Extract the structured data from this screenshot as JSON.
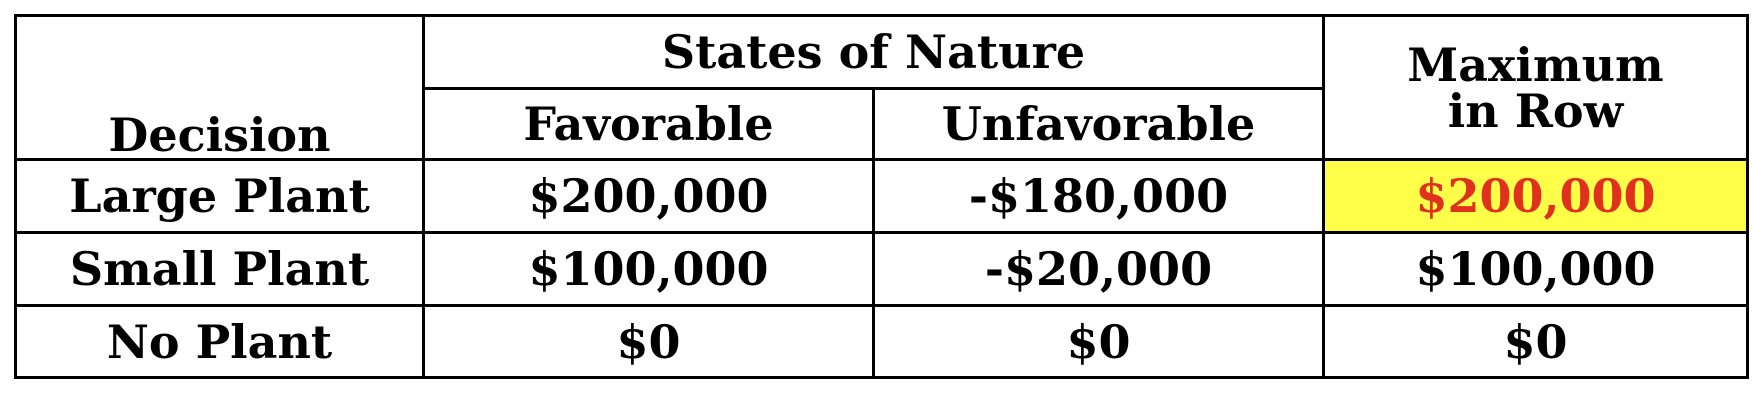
{
  "table": {
    "headers": {
      "decision": "Decision",
      "states_of_nature": "States of Nature",
      "maximum_line1": "Maximum",
      "maximum_line2": "in Row",
      "favorable": "Favorable",
      "unfavorable": "Unfavorable"
    },
    "rows": [
      {
        "decision": "Large Plant",
        "favorable": "$200,000",
        "unfavorable": "-$180,000",
        "maximum": "$200,000"
      },
      {
        "decision": "Small Plant",
        "favorable": "$100,000",
        "unfavorable": "-$20,000",
        "maximum": "$100,000"
      },
      {
        "decision": "No Plant",
        "favorable": "$0",
        "unfavorable": "$0",
        "maximum": "$0"
      }
    ],
    "highlighted_cell": {
      "row": 0,
      "column": "maximum"
    },
    "colors": {
      "highlight_background": "#ffff4a",
      "highlight_text": "#e0301e",
      "text": "#000000",
      "border": "#000000"
    }
  }
}
